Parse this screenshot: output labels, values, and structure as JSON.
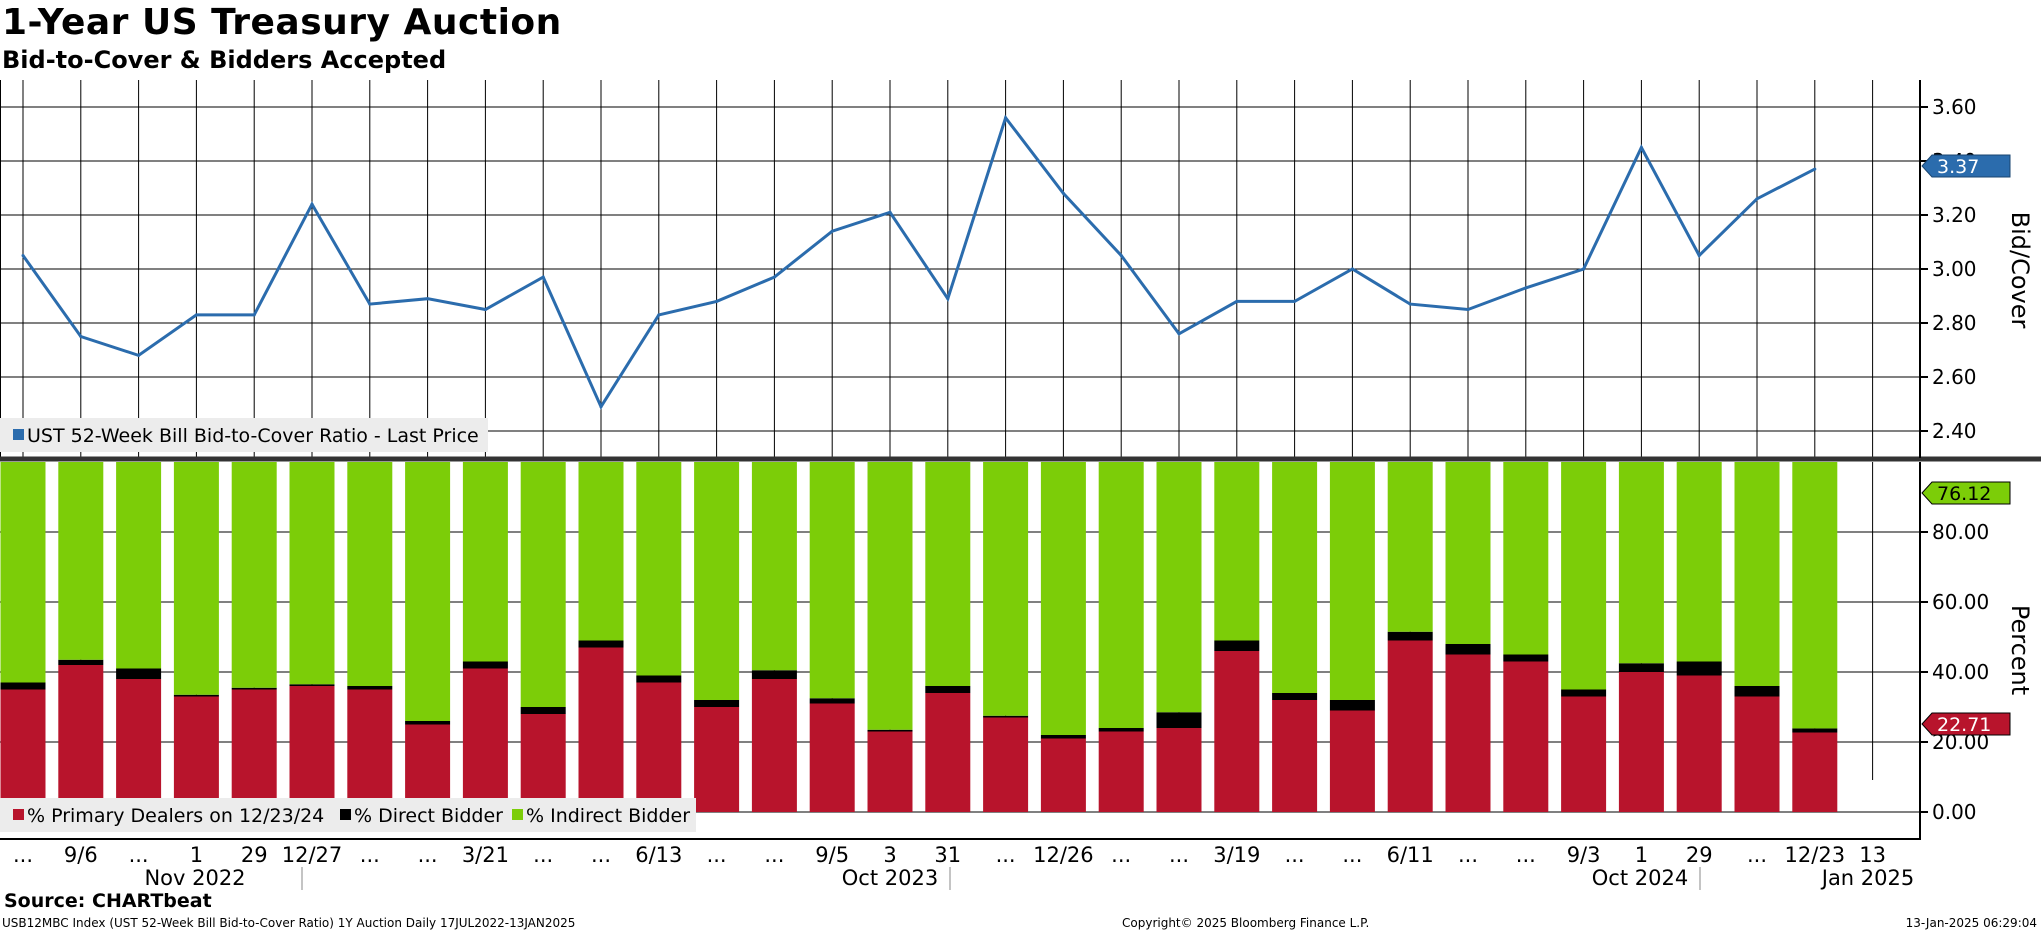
{
  "header": {
    "title": "1-Year US Treasury Auction",
    "subtitle": "Bid-to-Cover & Bidders Accepted"
  },
  "footer": {
    "source": "Source: CHARTbeat",
    "left": "USB12MBC Index (UST 52-Week Bill Bid-to-Cover Ratio) 1Y Auction  Daily 17JUL2022-13JAN2025",
    "copyright": "Copyright© 2025 Bloomberg Finance L.P.",
    "timestamp": "13-Jan-2025 06:29:04"
  },
  "colors": {
    "line": "#2b6cad",
    "primary": "#b8142c",
    "direct": "#000000",
    "indirect": "#7ccd08",
    "grid": "#000000"
  },
  "chart_data": [
    {
      "type": "line",
      "title": "1-Year US Treasury Auction",
      "ylabel": "Bid/Cover",
      "ylim": [
        2.3,
        3.7
      ],
      "yticks": [
        "2.40",
        "2.60",
        "2.80",
        "3.00",
        "3.20",
        "3.40",
        "3.60"
      ],
      "legend": "UST 52-Week Bill Bid-to-Cover Ratio - Last Price",
      "last_value_label": "3.37",
      "series": [
        {
          "name": "UST 52-Week Bill Bid-to-Cover Ratio - Last Price",
          "values": [
            3.05,
            2.75,
            2.68,
            2.83,
            2.83,
            3.24,
            2.87,
            2.89,
            2.85,
            2.97,
            2.49,
            2.83,
            2.88,
            2.97,
            3.14,
            3.21,
            2.89,
            3.56,
            3.28,
            3.05,
            2.76,
            2.88,
            2.88,
            3.0,
            2.87,
            2.85,
            2.93,
            3.0,
            3.45,
            3.05,
            3.26,
            3.37
          ]
        }
      ]
    },
    {
      "type": "bar",
      "stacked": true,
      "ylabel": "Percent",
      "ylim": [
        -8,
        100
      ],
      "yticks": [
        "0.00",
        "20.00",
        "40.00",
        "60.00",
        "80.00"
      ],
      "last_value_labels": {
        "indirect": "76.12",
        "primary": "22.71"
      },
      "series": [
        {
          "name": "% Primary Dealers on 12/23/24",
          "values": [
            35,
            42,
            38,
            33,
            35,
            36,
            35,
            25,
            41,
            28,
            47,
            37,
            30,
            38,
            31,
            23,
            34,
            27,
            21,
            23,
            24,
            46,
            32,
            29,
            49,
            45,
            43,
            33,
            40,
            39,
            33,
            22.71
          ]
        },
        {
          "name": "% Direct Bidder",
          "values": [
            2,
            1.5,
            3,
            0.5,
            0.5,
            0.5,
            1,
            1,
            2,
            2,
            2,
            2,
            2,
            2.5,
            1.5,
            0.5,
            2,
            0.5,
            1,
            1,
            4.5,
            3,
            2,
            3,
            2.5,
            3,
            2,
            2,
            2.5,
            4,
            3,
            1.17
          ]
        },
        {
          "name": "% Indirect Bidder",
          "values": [
            63,
            56.5,
            59,
            66.5,
            64.5,
            63.5,
            64,
            74,
            57,
            70,
            51,
            61,
            68,
            59.5,
            67.5,
            76.5,
            64,
            72.5,
            78,
            76,
            71.5,
            51,
            66,
            68,
            48.5,
            52,
            55,
            65,
            57.5,
            57,
            64,
            76.12
          ]
        }
      ]
    }
  ],
  "xaxis": {
    "row1_labels": [
      "...",
      "9/6",
      "...",
      "1",
      "29",
      "12/27",
      "...",
      "...",
      "3/21",
      "...",
      "...",
      "6/13",
      "...",
      "...",
      "9/5",
      "3",
      "31",
      "...",
      "12/26",
      "...",
      "...",
      "3/19",
      "...",
      "...",
      "6/11",
      "...",
      "...",
      "9/3",
      "1",
      "29",
      "...",
      "12/23",
      "13"
    ],
    "row2_labels": [
      "Nov 2022",
      "Oct 2023",
      "Oct 2024",
      "Jan 2025"
    ]
  }
}
